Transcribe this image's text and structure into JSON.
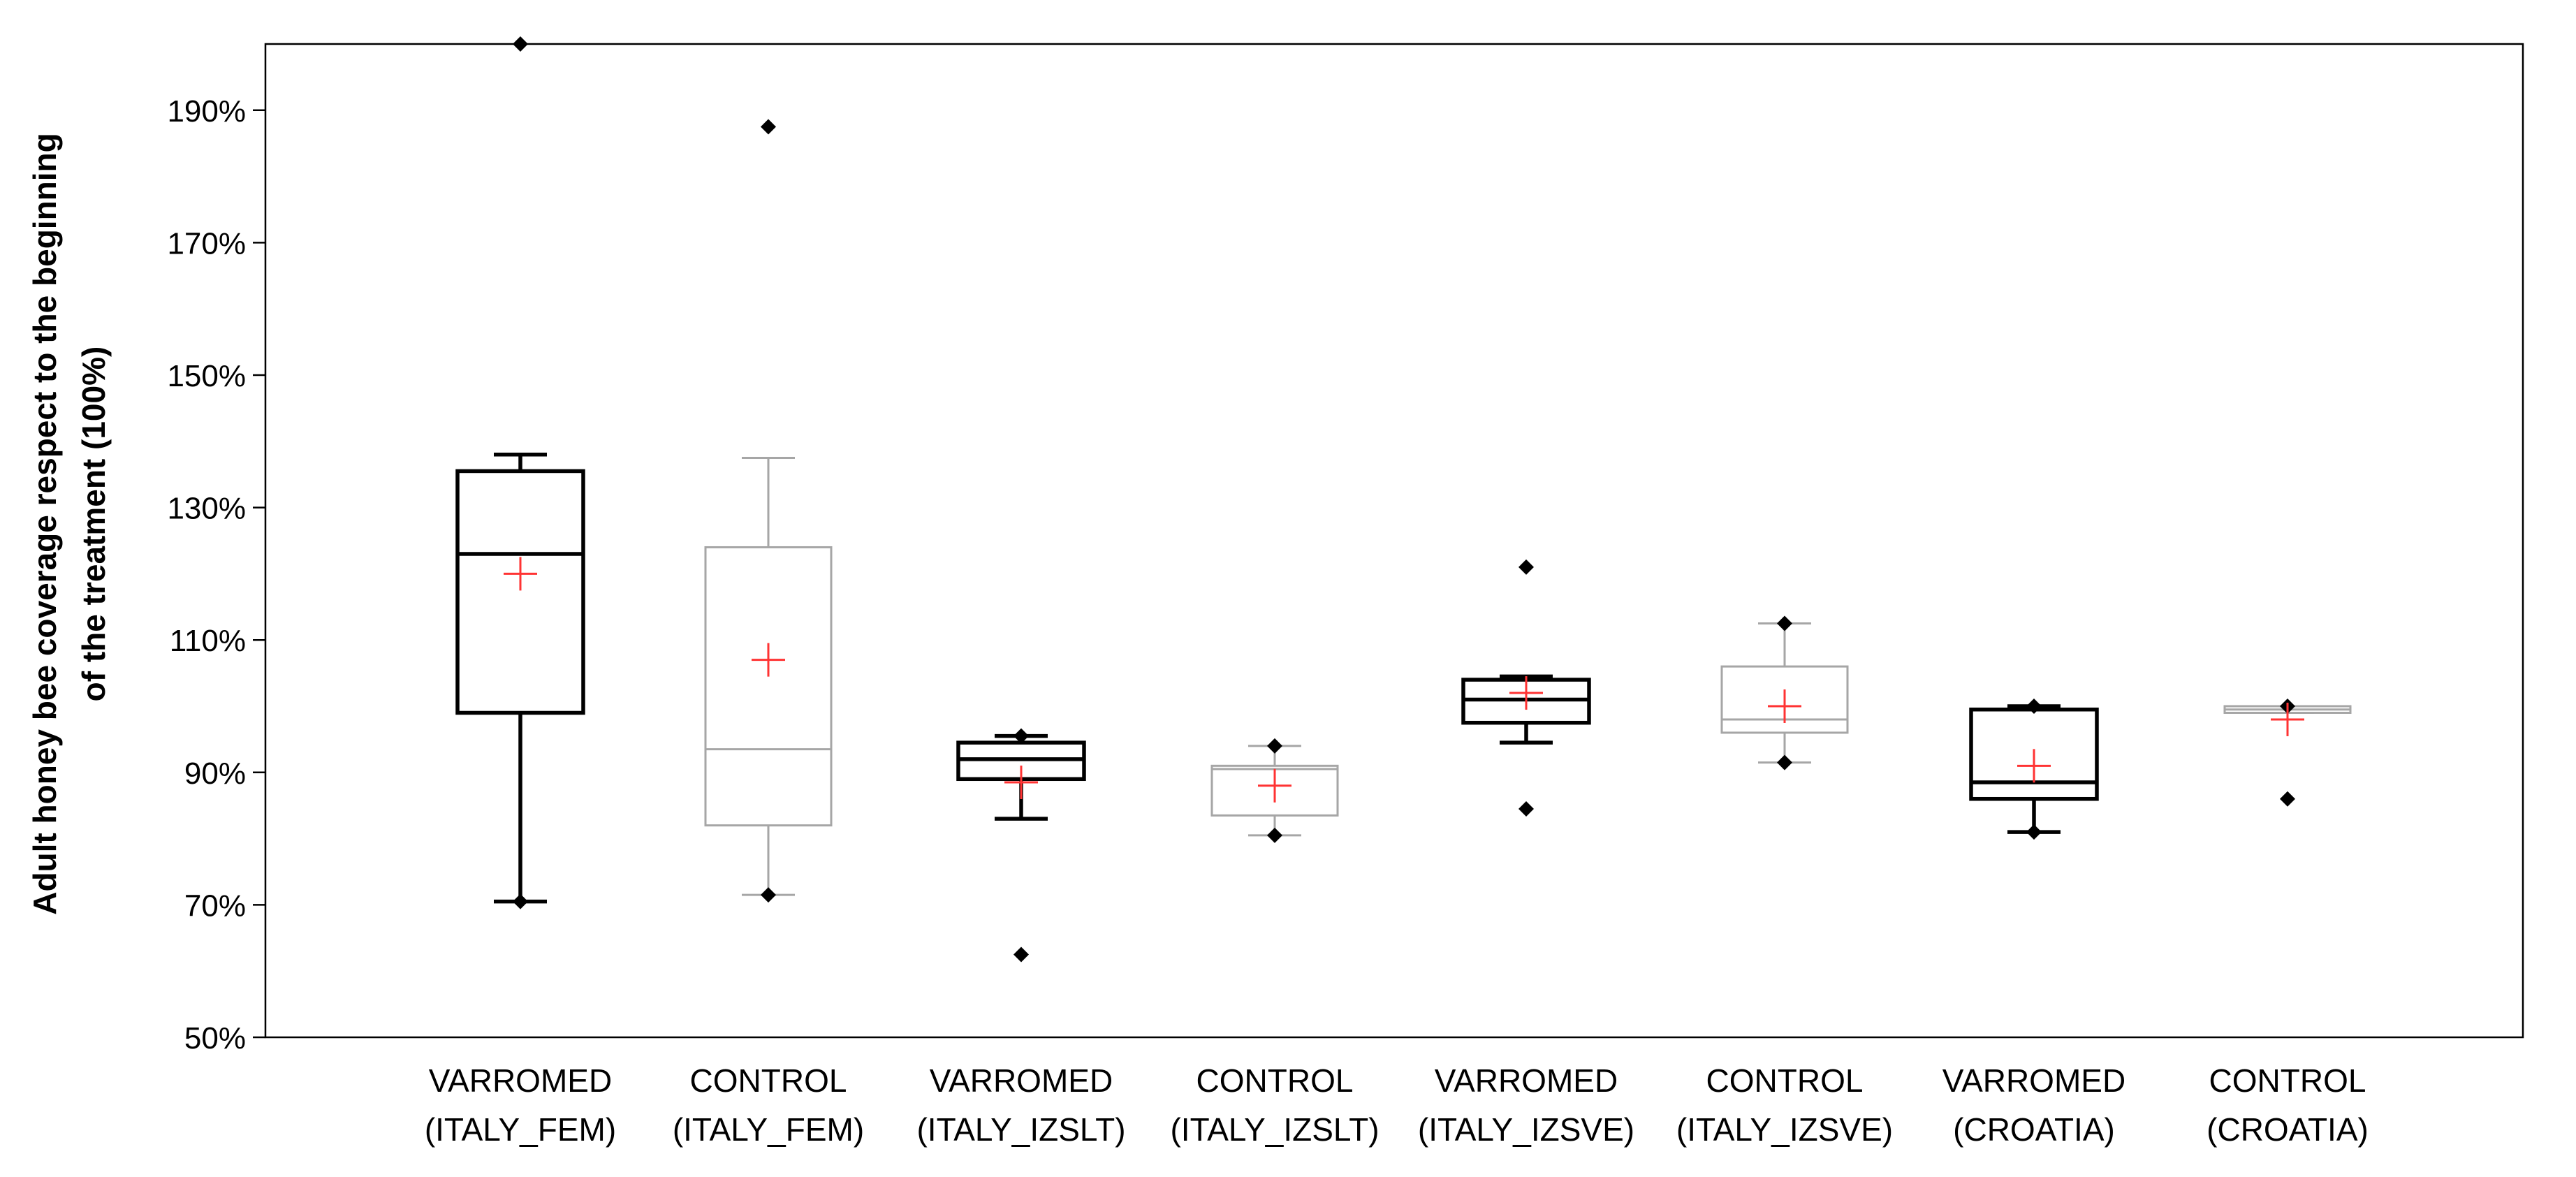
{
  "chart_data": {
    "type": "boxplot",
    "ylabel_lines": [
      "Adult honey bee coverage respect to the beginning",
      "of the treatment (100%)"
    ],
    "ylim": [
      50,
      200
    ],
    "yticks": [
      50,
      70,
      90,
      110,
      130,
      150,
      170,
      190
    ],
    "ytick_labels": [
      "50%",
      "70%",
      "90%",
      "110%",
      "130%",
      "150%",
      "170%",
      "190%"
    ],
    "colors": {
      "varromed": "#000000",
      "control": "#a6a6a6",
      "mean": "#ff3333"
    },
    "groups": [
      {
        "line1": "VARROMED",
        "line2": "(ITALY_FEM)",
        "style": "varromed",
        "whisker_low": 70.5,
        "q1": 99,
        "median": 123,
        "q3": 135.5,
        "whisker_high": 138,
        "mean": 120,
        "outliers": [
          200,
          70.5
        ]
      },
      {
        "line1": "CONTROL",
        "line2": "(ITALY_FEM)",
        "style": "control",
        "whisker_low": 71.5,
        "q1": 82,
        "median": 93.5,
        "q3": 124,
        "whisker_high": 137.5,
        "mean": 107,
        "outliers": [
          187.5,
          71.5
        ]
      },
      {
        "line1": "VARROMED",
        "line2": "(ITALY_IZSLT)",
        "style": "varromed",
        "whisker_low": 83,
        "q1": 89,
        "median": 92,
        "q3": 94.5,
        "whisker_high": 95.5,
        "mean": 88.5,
        "outliers": [
          62.5,
          95.5
        ]
      },
      {
        "line1": "CONTROL",
        "line2": "(ITALY_IZSLT)",
        "style": "control",
        "whisker_low": 80.5,
        "q1": 83.5,
        "median": 90.5,
        "q3": 91,
        "whisker_high": 94,
        "mean": 88,
        "outliers": [
          94,
          80.5
        ]
      },
      {
        "line1": "VARROMED",
        "line2": "(ITALY_IZSVE)",
        "style": "varromed",
        "whisker_low": 94.5,
        "q1": 97.5,
        "median": 101,
        "q3": 104,
        "whisker_high": 104.5,
        "mean": 102,
        "outliers": [
          121,
          84.5
        ]
      },
      {
        "line1": "CONTROL",
        "line2": "(ITALY_IZSVE)",
        "style": "control",
        "whisker_low": 91.5,
        "q1": 96,
        "median": 98,
        "q3": 106,
        "whisker_high": 112.5,
        "mean": 100,
        "outliers": [
          112.5,
          91.5
        ]
      },
      {
        "line1": "VARROMED",
        "line2": "(CROATIA)",
        "style": "varromed",
        "whisker_low": 81,
        "q1": 86,
        "median": 88.5,
        "q3": 99.5,
        "whisker_high": 100,
        "mean": 91,
        "outliers": [
          100,
          81
        ]
      },
      {
        "line1": "CONTROL",
        "line2": "(CROATIA)",
        "style": "control",
        "whisker_low": 99,
        "q1": 99,
        "median": 99.5,
        "q3": 100,
        "whisker_high": 100,
        "mean": 98,
        "outliers": [
          100,
          86
        ]
      }
    ]
  }
}
